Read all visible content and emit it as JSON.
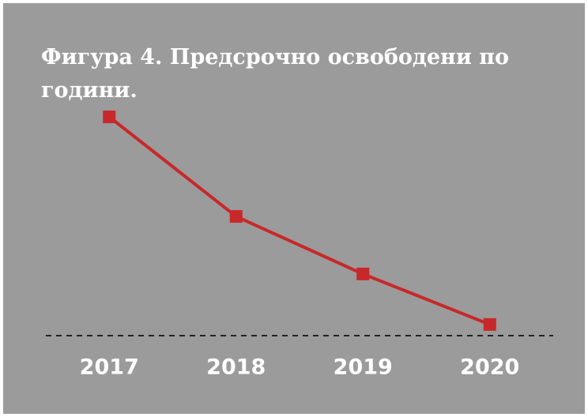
{
  "chart_data": {
    "type": "line",
    "title": "Фигура 4. Предсрочно освободени по години.",
    "categories": [
      "2017",
      "2018",
      "2019",
      "2020"
    ],
    "series": [
      {
        "name": null,
        "color": "#c8282a",
        "values": [
          100,
          54.5,
          28.2,
          5.1
        ]
      }
    ],
    "ylim": [
      0,
      100
    ]
  }
}
